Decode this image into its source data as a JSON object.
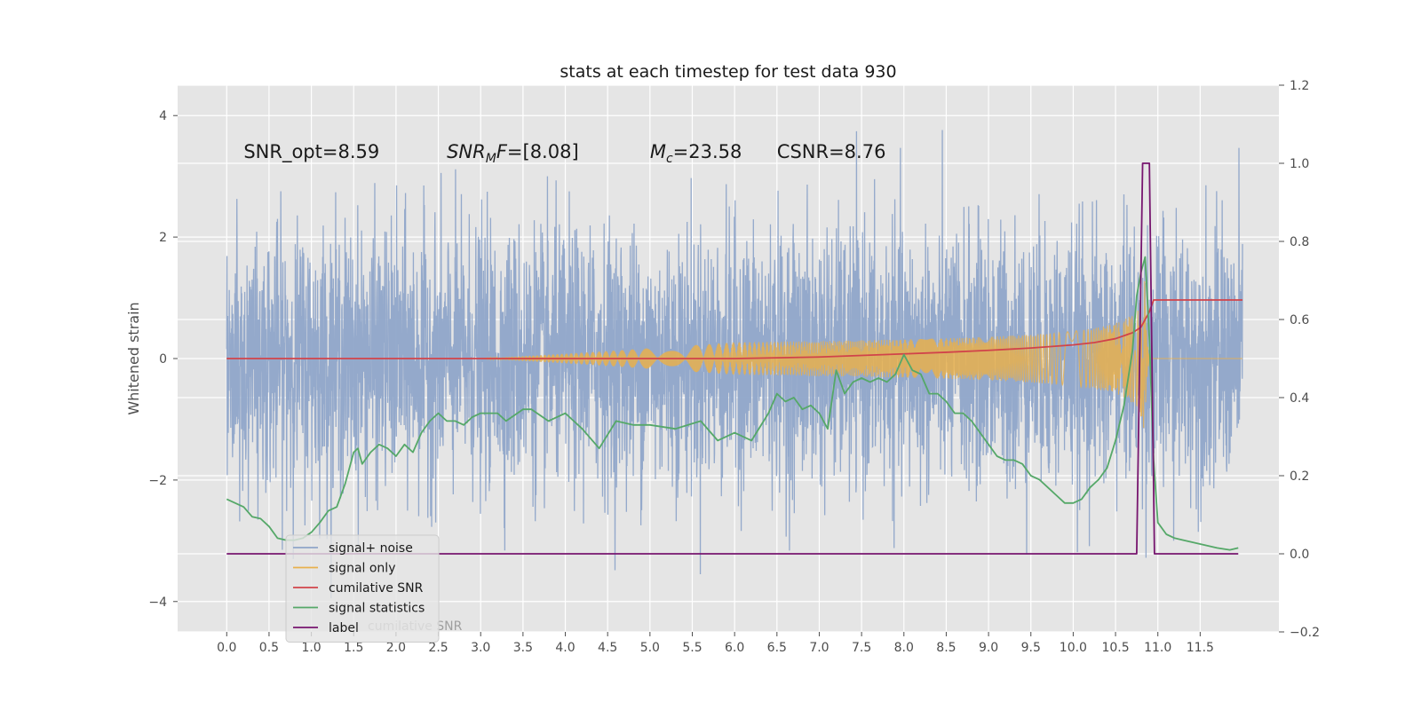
{
  "chart_data": {
    "type": "line",
    "title": "stats at each timestep for test data 930",
    "ylabel": "Whitened strain",
    "xlim": [
      -0.58,
      12.43
    ],
    "ylim": [
      -4.5,
      4.5
    ],
    "y2lim": [
      -0.2,
      1.2
    ],
    "grid": true,
    "legend_position": "lower-left",
    "x_ticks": [
      0.0,
      0.5,
      1.0,
      1.5,
      2.0,
      2.5,
      3.0,
      3.5,
      4.0,
      4.5,
      5.0,
      5.5,
      6.0,
      6.5,
      7.0,
      7.5,
      8.0,
      8.5,
      9.0,
      9.5,
      10.0,
      10.5,
      11.0,
      11.5
    ],
    "x_tick_labels": [
      "0.0",
      "0.5",
      "1.0",
      "1.5",
      "2.0",
      "2.5",
      "3.0",
      "3.5",
      "4.0",
      "4.5",
      "5.0",
      "5.5",
      "6.0",
      "6.5",
      "7.0",
      "7.5",
      "8.0",
      "8.5",
      "9.0",
      "9.5",
      "10.0",
      "10.5",
      "11.0",
      "11.5"
    ],
    "y_ticks": [
      -4,
      -2,
      0,
      2,
      4
    ],
    "y_tick_labels": [
      "−4",
      "−2",
      "0",
      "2",
      "4"
    ],
    "y2_ticks": [
      -0.2,
      0.0,
      0.2,
      0.4,
      0.6,
      0.8,
      1.0,
      1.2
    ],
    "y2_tick_labels": [
      "−0.2",
      "0.0",
      "0.2",
      "0.4",
      "0.6",
      "0.8",
      "1.0",
      "1.2"
    ],
    "annotations": [
      {
        "text": "SNR_opt=8.59",
        "x": 0.2,
        "y": 3.3,
        "style": "plain"
      },
      {
        "text": "SNR_MF=[8.08]",
        "x": 2.6,
        "y": 3.3,
        "style": "math_snr"
      },
      {
        "text": "M_c=23.58",
        "x": 5.0,
        "y": 3.3,
        "style": "math_mc"
      },
      {
        "text": "CSNR=8.76",
        "x": 6.5,
        "y": 3.3,
        "style": "plain"
      }
    ],
    "series": [
      {
        "name": "signal+ noise",
        "color": "#8fa5c9",
        "axis": "left",
        "kind": "noise",
        "x_range": [
          0.0,
          12.0
        ],
        "envelope_sigma": 1.0,
        "min": -4.1,
        "max": 4.1
      },
      {
        "name": "signal only",
        "color": "#e8b04d",
        "axis": "left",
        "kind": "chirp",
        "x_range": [
          0.0,
          12.0
        ],
        "peak_time": 10.85,
        "peak_amplitude": 1.4
      },
      {
        "name": "cumilative SNR",
        "color": "#d1434a",
        "axis": "right",
        "x": [
          0.0,
          5.0,
          6.0,
          7.0,
          7.5,
          8.0,
          8.5,
          9.0,
          9.5,
          10.0,
          10.25,
          10.5,
          10.7,
          10.8,
          10.85,
          10.9,
          10.95,
          11.0,
          12.0
        ],
        "y": [
          0.5,
          0.5,
          0.5,
          0.504,
          0.508,
          0.512,
          0.516,
          0.521,
          0.527,
          0.535,
          0.541,
          0.551,
          0.566,
          0.58,
          0.6,
          0.62,
          0.65,
          0.65,
          0.65
        ]
      },
      {
        "name": "signal statistics",
        "color": "#55a868",
        "axis": "right",
        "x": [
          0.0,
          0.1,
          0.2,
          0.3,
          0.4,
          0.5,
          0.6,
          0.7,
          0.8,
          0.9,
          1.0,
          1.1,
          1.2,
          1.3,
          1.4,
          1.5,
          1.55,
          1.6,
          1.7,
          1.8,
          1.9,
          2.0,
          2.1,
          2.2,
          2.3,
          2.4,
          2.5,
          2.6,
          2.7,
          2.8,
          2.9,
          3.0,
          3.2,
          3.3,
          3.5,
          3.6,
          3.8,
          4.0,
          4.2,
          4.4,
          4.6,
          4.8,
          5.0,
          5.3,
          5.6,
          5.8,
          6.0,
          6.2,
          6.4,
          6.5,
          6.6,
          6.7,
          6.8,
          6.9,
          7.0,
          7.1,
          7.2,
          7.3,
          7.4,
          7.5,
          7.6,
          7.7,
          7.8,
          7.9,
          8.0,
          8.1,
          8.2,
          8.3,
          8.4,
          8.5,
          8.6,
          8.7,
          8.8,
          8.9,
          9.0,
          9.1,
          9.2,
          9.3,
          9.4,
          9.5,
          9.6,
          9.7,
          9.8,
          9.9,
          10.0,
          10.1,
          10.2,
          10.3,
          10.4,
          10.5,
          10.6,
          10.7,
          10.75,
          10.8,
          10.85,
          10.9,
          10.95,
          11.0,
          11.1,
          11.2,
          11.3,
          11.5,
          11.7,
          11.85,
          11.95
        ],
        "y": [
          0.14,
          0.13,
          0.12,
          0.095,
          0.09,
          0.07,
          0.04,
          0.035,
          0.035,
          0.04,
          0.055,
          0.08,
          0.11,
          0.12,
          0.18,
          0.26,
          0.27,
          0.23,
          0.26,
          0.28,
          0.27,
          0.25,
          0.28,
          0.26,
          0.31,
          0.34,
          0.36,
          0.34,
          0.34,
          0.33,
          0.35,
          0.36,
          0.36,
          0.34,
          0.37,
          0.37,
          0.34,
          0.36,
          0.32,
          0.27,
          0.34,
          0.33,
          0.33,
          0.32,
          0.34,
          0.29,
          0.31,
          0.29,
          0.36,
          0.41,
          0.39,
          0.4,
          0.37,
          0.38,
          0.36,
          0.32,
          0.47,
          0.41,
          0.44,
          0.45,
          0.44,
          0.45,
          0.44,
          0.46,
          0.51,
          0.47,
          0.46,
          0.41,
          0.41,
          0.39,
          0.36,
          0.36,
          0.34,
          0.31,
          0.28,
          0.25,
          0.24,
          0.24,
          0.23,
          0.2,
          0.19,
          0.17,
          0.15,
          0.13,
          0.13,
          0.14,
          0.17,
          0.19,
          0.22,
          0.29,
          0.38,
          0.52,
          0.66,
          0.72,
          0.76,
          0.55,
          0.24,
          0.08,
          0.05,
          0.04,
          0.035,
          0.025,
          0.015,
          0.01,
          0.015
        ]
      },
      {
        "name": "label",
        "color": "#77166f",
        "axis": "right",
        "x": [
          0.0,
          10.75,
          10.82,
          10.9,
          10.96,
          11.95
        ],
        "y": [
          0.0,
          0.0,
          1.0,
          1.0,
          0.0,
          0.0
        ]
      }
    ],
    "legend": [
      {
        "label": "signal+ noise",
        "color": "#8fa5c9"
      },
      {
        "label": "signal only",
        "color": "#e8b04d"
      },
      {
        "label": "cumilative SNR",
        "color": "#d1434a"
      },
      {
        "label": "signal statistics",
        "color": "#55a868"
      },
      {
        "label": "label",
        "color": "#77166f"
      }
    ],
    "legend_background_text": "cumilative SNR"
  }
}
